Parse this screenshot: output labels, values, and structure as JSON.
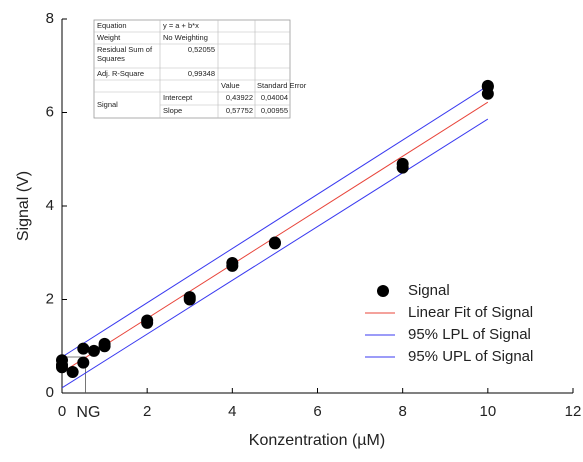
{
  "chart_data": {
    "type": "scatter",
    "x_label": "Konzentration (µM)",
    "y_label": "Signal (V)",
    "xlim": [
      0,
      12
    ],
    "xticks": [
      0,
      2,
      4,
      6,
      8,
      10,
      12
    ],
    "ylim": [
      0,
      8
    ],
    "yticks": [
      0,
      2,
      4,
      6,
      8
    ],
    "legend": "lower right",
    "series": [
      {
        "name": "Signal",
        "type": "scatter",
        "color": "#000000",
        "x": [
          0,
          0,
          0,
          0.25,
          0.5,
          0.5,
          0.75,
          1,
          1,
          2,
          2,
          3,
          3,
          4,
          4,
          5,
          5,
          8,
          8,
          10,
          10,
          10
        ],
        "values": [
          0.55,
          0.7,
          0.6,
          0.45,
          0.95,
          0.65,
          0.9,
          1.0,
          1.05,
          1.5,
          1.55,
          2.0,
          2.05,
          2.72,
          2.78,
          3.2,
          3.22,
          4.82,
          4.9,
          6.4,
          6.55,
          6.57
        ]
      },
      {
        "name": "Linear Fit of Signal",
        "type": "line",
        "color": "#e8443a",
        "x": [
          0,
          10
        ],
        "values": [
          0.44,
          6.22
        ]
      },
      {
        "name": "95% LPL of Signal",
        "type": "line",
        "color": "#3a3af0",
        "x": [
          0,
          10
        ],
        "values": [
          0.11,
          5.86
        ]
      },
      {
        "name": "95% UPL of Signal",
        "type": "line",
        "color": "#3a3af0",
        "x": [
          0,
          10
        ],
        "values": [
          0.77,
          6.57
        ]
      }
    ],
    "annotation": {
      "text": "NG",
      "x": 0.55,
      "y": 0.77
    },
    "table": {
      "equation_label": "Equation",
      "equation": "y = a + b*x",
      "weight_label": "Weight",
      "weight": "No Weighting",
      "rss_label": "Residual Sum of Squares",
      "rss": "0,52055",
      "r2_label": "Adj. R-Square",
      "r2": "0,99348",
      "col_headers": [
        "Value",
        "Standard Error"
      ],
      "row_group": "Signal",
      "rows": [
        [
          "Intercept",
          "0,43922",
          "0,04004"
        ],
        [
          "Slope",
          "0,57752",
          "0,00955"
        ]
      ]
    }
  }
}
